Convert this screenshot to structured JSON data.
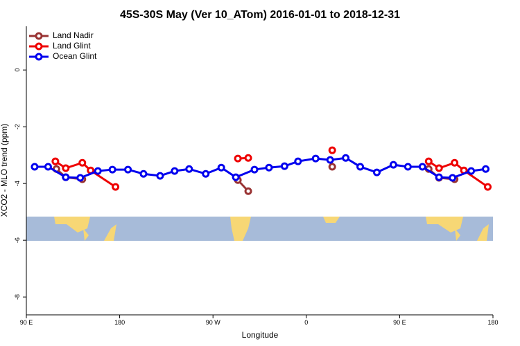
{
  "chart_data": {
    "type": "line",
    "title": "45S-30S May (Ver 10_ATom)   2016-01-01 to 2018-12-31",
    "x_label": "Longitude",
    "y_label": "XCO2 - MLO trend (ppm)",
    "xlim": [
      90,
      540
    ],
    "xticks": [
      {
        "value": 90,
        "label": "90 E"
      },
      {
        "value": 180,
        "label": "180"
      },
      {
        "value": 270,
        "label": "90 W"
      },
      {
        "value": 360,
        "label": "0"
      },
      {
        "value": 450,
        "label": "90 E"
      },
      {
        "value": 540,
        "label": "180"
      }
    ],
    "ylim": [
      -8.63,
      1.54
    ],
    "yticks": [
      0,
      -2,
      -4,
      -6,
      -8
    ],
    "legend": "top-left",
    "series": [
      {
        "name": "Land Nadir",
        "color": "#993333",
        "x": [
          119,
          128,
          144,
          null,
          294,
          304,
          null,
          385,
          null,
          478,
          488,
          503
        ],
        "values": [
          -3.49,
          -3.78,
          -3.85,
          null,
          -3.88,
          -4.27,
          null,
          -3.41,
          null,
          -3.49,
          -3.8,
          -3.85
        ]
      },
      {
        "name": "Land Glint",
        "color": "#ee0000",
        "x": [
          118,
          128,
          144,
          152,
          176,
          null,
          294,
          304,
          null,
          385,
          null,
          478,
          488,
          503,
          512,
          535
        ],
        "values": [
          -3.22,
          -3.46,
          -3.27,
          -3.54,
          -4.12,
          null,
          -3.12,
          -3.1,
          null,
          -2.83,
          null,
          -3.22,
          -3.46,
          -3.27,
          -3.54,
          -4.12
        ]
      },
      {
        "name": "Ocean Glint",
        "color": "#0000ee",
        "x": [
          98,
          111,
          128,
          142,
          159,
          173,
          188,
          203,
          219,
          233,
          247,
          263,
          278,
          292,
          310,
          324,
          339,
          352,
          369,
          383,
          398,
          412,
          428,
          444,
          458,
          472,
          488,
          501,
          519,
          533
        ],
        "values": [
          -3.41,
          -3.41,
          -3.78,
          -3.8,
          -3.56,
          -3.51,
          -3.51,
          -3.66,
          -3.73,
          -3.56,
          -3.49,
          -3.66,
          -3.44,
          -3.78,
          -3.51,
          -3.44,
          -3.39,
          -3.22,
          -3.12,
          -3.17,
          -3.1,
          -3.41,
          -3.61,
          -3.34,
          -3.41,
          -3.41,
          -3.78,
          -3.8,
          -3.56,
          -3.49
        ]
      }
    ]
  }
}
